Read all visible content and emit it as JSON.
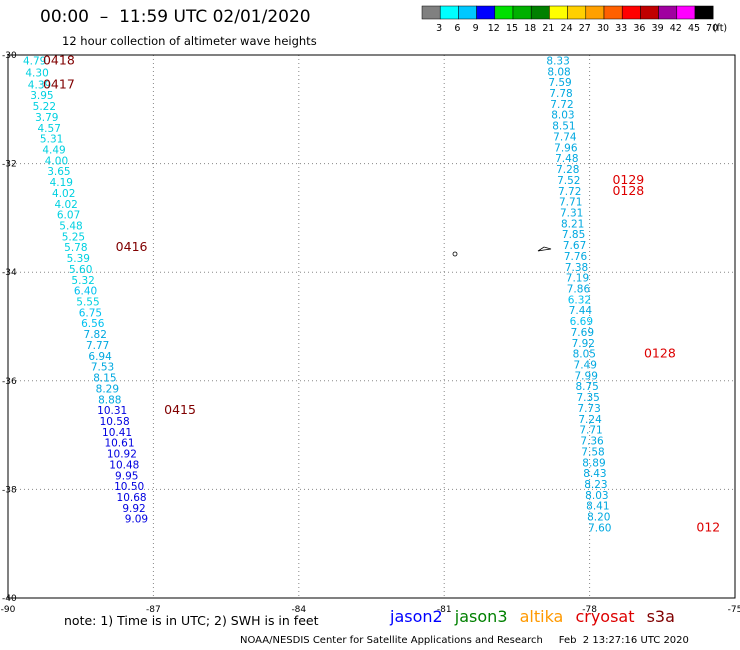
{
  "header": {
    "title": "00:00  –  11:59 UTC 02/01/2020",
    "subtitle": "12 hour collection of altimeter wave heights"
  },
  "color_scale": {
    "labels": [
      "3",
      "6",
      "9",
      "12",
      "15",
      "18",
      "21",
      "24",
      "27",
      "30",
      "33",
      "36",
      "39",
      "42",
      "45",
      "70"
    ],
    "unit": "(ft)",
    "colors": [
      "#808080",
      "#00ffff",
      "#00c8ff",
      "#0000ff",
      "#00e000",
      "#00b000",
      "#008000",
      "#ffff00",
      "#ffd000",
      "#ffa000",
      "#ff6000",
      "#ff0000",
      "#c00000",
      "#a000a0",
      "#ff00ff",
      "#000000"
    ]
  },
  "footer": {
    "note": "note:  1) Time is in UTC;  2) SWH is in feet",
    "credit": "NOAA/NESDIS Center for Satellite Applications and Research     Feb  2 13:27:16 UTC 2020"
  },
  "legend": [
    {
      "label": "jason2",
      "color": "#0000ff"
    },
    {
      "label": "jason3",
      "color": "#008000"
    },
    {
      "label": "altika",
      "color": "#ff9900"
    },
    {
      "label": "cryosat",
      "color": "#dd0000"
    },
    {
      "label": "s3a",
      "color": "#800000"
    }
  ],
  "chart_data": {
    "type": "scatter",
    "x_axis": {
      "min": -90,
      "max": -75,
      "ticks": [
        -90,
        -87,
        -84,
        -81,
        -78,
        -75
      ],
      "tick_labels": [
        "-90",
        "-87",
        "-84",
        "-81",
        "-78",
        "-75"
      ]
    },
    "y_axis": {
      "min": -40,
      "max": -30,
      "ticks": [
        -30,
        -32,
        -34,
        -36,
        -38,
        -40
      ],
      "tick_labels": [
        "-30",
        "-32",
        "-34",
        "-36",
        "-38",
        "-40"
      ]
    },
    "grid": true,
    "tracks": [
      {
        "name": "west",
        "points": [
          {
            "x": -89.45,
            "y": -30.1,
            "v": "4.79",
            "c": "#00d0e0"
          },
          {
            "x": -89.4,
            "y": -30.32,
            "v": "4.30",
            "c": "#00d0e0"
          },
          {
            "x": -89.35,
            "y": -30.54,
            "v": "4.39",
            "c": "#00d0e0"
          },
          {
            "x": -89.3,
            "y": -30.74,
            "v": "3.95",
            "c": "#00d0e0"
          },
          {
            "x": -89.25,
            "y": -30.94,
            "v": "5.22",
            "c": "#00d0e0"
          },
          {
            "x": -89.2,
            "y": -31.14,
            "v": "3.79",
            "c": "#00d0e0"
          },
          {
            "x": -89.15,
            "y": -31.34,
            "v": "4.57",
            "c": "#00d0e0"
          },
          {
            "x": -89.1,
            "y": -31.54,
            "v": "5.31",
            "c": "#00d0e0"
          },
          {
            "x": -89.05,
            "y": -31.74,
            "v": "4.49",
            "c": "#00d0e0"
          },
          {
            "x": -89.0,
            "y": -31.94,
            "v": "4.00",
            "c": "#00d0e0"
          },
          {
            "x": -88.95,
            "y": -32.14,
            "v": "3.65",
            "c": "#00d0e0"
          },
          {
            "x": -88.9,
            "y": -32.34,
            "v": "4.19",
            "c": "#00d0e0"
          },
          {
            "x": -88.85,
            "y": -32.54,
            "v": "4.02",
            "c": "#00d0e0"
          },
          {
            "x": -88.8,
            "y": -32.74,
            "v": "4.02",
            "c": "#00d0e0"
          },
          {
            "x": -88.75,
            "y": -32.94,
            "v": "6.07",
            "c": "#00d0e0"
          },
          {
            "x": -88.7,
            "y": -33.14,
            "v": "5.48",
            "c": "#00d0e0"
          },
          {
            "x": -88.65,
            "y": -33.34,
            "v": "5.25",
            "c": "#00d0e0"
          },
          {
            "x": -88.6,
            "y": -33.54,
            "v": "5.78",
            "c": "#00d0e0"
          },
          {
            "x": -88.55,
            "y": -33.74,
            "v": "5.39",
            "c": "#00d0e0"
          },
          {
            "x": -88.5,
            "y": -33.94,
            "v": "5.60",
            "c": "#00d0e0"
          },
          {
            "x": -88.45,
            "y": -34.14,
            "v": "5.32",
            "c": "#00d0e0"
          },
          {
            "x": -88.4,
            "y": -34.34,
            "v": "6.40",
            "c": "#00c0f0"
          },
          {
            "x": -88.35,
            "y": -34.54,
            "v": "5.55",
            "c": "#00d0e0"
          },
          {
            "x": -88.3,
            "y": -34.74,
            "v": "6.75",
            "c": "#00c0f0"
          },
          {
            "x": -88.25,
            "y": -34.94,
            "v": "6.56",
            "c": "#00c0f0"
          },
          {
            "x": -88.2,
            "y": -35.14,
            "v": "7.82",
            "c": "#00a8e0"
          },
          {
            "x": -88.15,
            "y": -35.34,
            "v": "7.77",
            "c": "#00a8e0"
          },
          {
            "x": -88.1,
            "y": -35.54,
            "v": "6.94",
            "c": "#00a8e0"
          },
          {
            "x": -88.05,
            "y": -35.74,
            "v": "7.53",
            "c": "#00a8e0"
          },
          {
            "x": -88.0,
            "y": -35.94,
            "v": "8.15",
            "c": "#00a8e0"
          },
          {
            "x": -87.95,
            "y": -36.14,
            "v": "8.29",
            "c": "#00a8e0"
          },
          {
            "x": -87.9,
            "y": -36.34,
            "v": "8.88",
            "c": "#00a8e0"
          },
          {
            "x": -87.85,
            "y": -36.54,
            "v": "10.31",
            "c": "#0000e0"
          },
          {
            "x": -87.8,
            "y": -36.74,
            "v": "10.58",
            "c": "#0000e0"
          },
          {
            "x": -87.75,
            "y": -36.94,
            "v": "10.41",
            "c": "#0000e0"
          },
          {
            "x": -87.7,
            "y": -37.14,
            "v": "10.61",
            "c": "#0000e0"
          },
          {
            "x": -87.65,
            "y": -37.34,
            "v": "10.92",
            "c": "#0000e0"
          },
          {
            "x": -87.6,
            "y": -37.54,
            "v": "10.48",
            "c": "#0000e0"
          },
          {
            "x": -87.55,
            "y": -37.74,
            "v": "9.95",
            "c": "#0000e0"
          },
          {
            "x": -87.5,
            "y": -37.94,
            "v": "10.50",
            "c": "#0000e0"
          },
          {
            "x": -87.45,
            "y": -38.14,
            "v": "10.68",
            "c": "#0000e0"
          },
          {
            "x": -87.4,
            "y": -38.34,
            "v": "9.92",
            "c": "#0000e0"
          },
          {
            "x": -87.35,
            "y": -38.54,
            "v": "9.09",
            "c": "#0000e0"
          }
        ]
      },
      {
        "name": "east",
        "points": [
          {
            "x": -78.65,
            "y": -30.1,
            "v": "8.33",
            "c": "#00a8e0"
          },
          {
            "x": -78.63,
            "y": -30.3,
            "v": "8.08",
            "c": "#00a8e0"
          },
          {
            "x": -78.61,
            "y": -30.5,
            "v": "7.59",
            "c": "#00a8e0"
          },
          {
            "x": -78.59,
            "y": -30.7,
            "v": "7.78",
            "c": "#00a8e0"
          },
          {
            "x": -78.57,
            "y": -30.9,
            "v": "7.72",
            "c": "#00a8e0"
          },
          {
            "x": -78.55,
            "y": -31.1,
            "v": "8.03",
            "c": "#00a8e0"
          },
          {
            "x": -78.53,
            "y": -31.3,
            "v": "8.51",
            "c": "#00a8e0"
          },
          {
            "x": -78.51,
            "y": -31.5,
            "v": "7.74",
            "c": "#00a8e0"
          },
          {
            "x": -78.49,
            "y": -31.7,
            "v": "7.96",
            "c": "#00a8e0"
          },
          {
            "x": -78.47,
            "y": -31.9,
            "v": "7.48",
            "c": "#00a8e0"
          },
          {
            "x": -78.45,
            "y": -32.1,
            "v": "7.28",
            "c": "#00a8e0"
          },
          {
            "x": -78.43,
            "y": -32.3,
            "v": "7.52",
            "c": "#00a8e0"
          },
          {
            "x": -78.41,
            "y": -32.5,
            "v": "7.72",
            "c": "#00a8e0"
          },
          {
            "x": -78.39,
            "y": -32.7,
            "v": "7.71",
            "c": "#00a8e0"
          },
          {
            "x": -78.37,
            "y": -32.9,
            "v": "7.31",
            "c": "#00a8e0"
          },
          {
            "x": -78.35,
            "y": -33.1,
            "v": "8.21",
            "c": "#00a8e0"
          },
          {
            "x": -78.33,
            "y": -33.3,
            "v": "7.85",
            "c": "#00a8e0"
          },
          {
            "x": -78.31,
            "y": -33.5,
            "v": "7.67",
            "c": "#00a8e0"
          },
          {
            "x": -78.29,
            "y": -33.7,
            "v": "7.76",
            "c": "#00a8e0"
          },
          {
            "x": -78.27,
            "y": -33.9,
            "v": "7.38",
            "c": "#00a8e0"
          },
          {
            "x": -78.25,
            "y": -34.1,
            "v": "7.19",
            "c": "#00a8e0"
          },
          {
            "x": -78.23,
            "y": -34.3,
            "v": "7.86",
            "c": "#00a8e0"
          },
          {
            "x": -78.21,
            "y": -34.5,
            "v": "6.32",
            "c": "#00c0f0"
          },
          {
            "x": -78.19,
            "y": -34.7,
            "v": "7.44",
            "c": "#00a8e0"
          },
          {
            "x": -78.17,
            "y": -34.9,
            "v": "6.69",
            "c": "#00c0f0"
          },
          {
            "x": -78.15,
            "y": -35.1,
            "v": "7.69",
            "c": "#00a8e0"
          },
          {
            "x": -78.13,
            "y": -35.3,
            "v": "7.92",
            "c": "#00a8e0"
          },
          {
            "x": -78.11,
            "y": -35.5,
            "v": "8.05",
            "c": "#00a8e0"
          },
          {
            "x": -78.09,
            "y": -35.7,
            "v": "7.49",
            "c": "#00a8e0"
          },
          {
            "x": -78.07,
            "y": -35.9,
            "v": "7.99",
            "c": "#00a8e0"
          },
          {
            "x": -78.05,
            "y": -36.1,
            "v": "8.75",
            "c": "#00a8e0"
          },
          {
            "x": -78.03,
            "y": -36.3,
            "v": "7.35",
            "c": "#00a8e0"
          },
          {
            "x": -78.01,
            "y": -36.5,
            "v": "7.73",
            "c": "#00a8e0"
          },
          {
            "x": -77.99,
            "y": -36.7,
            "v": "7.24",
            "c": "#00a8e0"
          },
          {
            "x": -77.97,
            "y": -36.9,
            "v": "7.71",
            "c": "#00a8e0"
          },
          {
            "x": -77.95,
            "y": -37.1,
            "v": "7.36",
            "c": "#00a8e0"
          },
          {
            "x": -77.93,
            "y": -37.3,
            "v": "7.58",
            "c": "#00a8e0"
          },
          {
            "x": -77.91,
            "y": -37.5,
            "v": "8.89",
            "c": "#00a8e0"
          },
          {
            "x": -77.89,
            "y": -37.7,
            "v": "8.43",
            "c": "#00a8e0"
          },
          {
            "x": -77.87,
            "y": -37.9,
            "v": "8.23",
            "c": "#00a8e0"
          },
          {
            "x": -77.85,
            "y": -38.1,
            "v": "8.03",
            "c": "#00a8e0"
          },
          {
            "x": -77.83,
            "y": -38.3,
            "v": "8.41",
            "c": "#00a8e0"
          },
          {
            "x": -77.81,
            "y": -38.5,
            "v": "8.20",
            "c": "#00a8e0"
          },
          {
            "x": -77.79,
            "y": -38.7,
            "v": "7.60",
            "c": "#00a8e0"
          }
        ]
      }
    ],
    "time_labels": [
      {
        "x": -88.95,
        "y": -30.1,
        "text": "0418",
        "color": "#800000"
      },
      {
        "x": -88.95,
        "y": -30.54,
        "text": "0417",
        "color": "#800000"
      },
      {
        "x": -87.45,
        "y": -33.54,
        "text": "0416",
        "color": "#800000"
      },
      {
        "x": -86.45,
        "y": -36.54,
        "text": "0415",
        "color": "#800000"
      },
      {
        "x": -77.2,
        "y": -32.3,
        "text": "0129",
        "color": "#dd0000"
      },
      {
        "x": -77.2,
        "y": -32.5,
        "text": "0128",
        "color": "#dd0000"
      },
      {
        "x": -76.55,
        "y": -35.5,
        "text": "0128",
        "color": "#dd0000"
      },
      {
        "x": -75.55,
        "y": -38.7,
        "text": "012",
        "color": "#dd0000"
      }
    ]
  }
}
